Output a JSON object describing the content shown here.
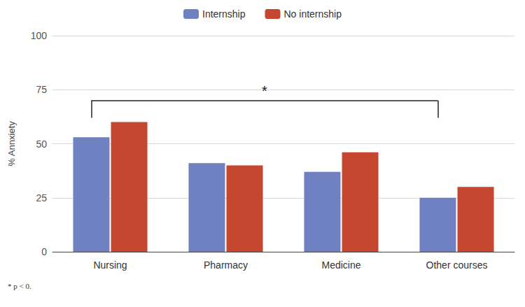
{
  "chart_data": {
    "type": "bar",
    "y_label": "% Annxiety",
    "categories": [
      "Nursing",
      "Pharmacy",
      "Medicine",
      "Other courses"
    ],
    "series": [
      {
        "name": "Internship",
        "color": "#6f81c1",
        "values": [
          53,
          41,
          37,
          25
        ]
      },
      {
        "name": "No internship",
        "color": "#c5472f",
        "values": [
          60,
          40,
          46,
          30
        ]
      }
    ],
    "ylim": [
      0,
      100
    ],
    "yticks": [
      0,
      25,
      50,
      75,
      100
    ],
    "grid": true,
    "legend": "top",
    "annotations": [
      {
        "text": "*",
        "from": "Nursing",
        "to": "Other courses",
        "y": 70,
        "y_end": 62
      }
    ],
    "footnote": "* p < 0."
  }
}
